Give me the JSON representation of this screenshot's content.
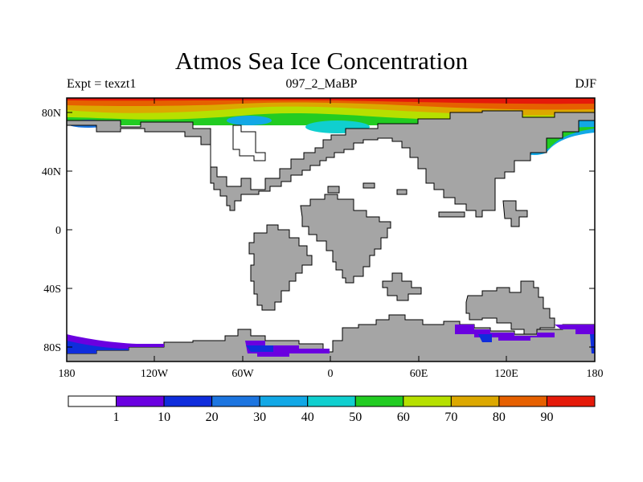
{
  "header": {
    "title": "Atmos Sea Ice Concentration",
    "left": "Expt = texzt1",
    "center": "097_2_MaBP",
    "right": "DJF"
  },
  "axes": {
    "lat_labels": [
      "80N",
      "40N",
      "0",
      "40S",
      "80S"
    ],
    "lon_labels": [
      "180",
      "120W",
      "60W",
      "0",
      "60E",
      "120E",
      "180"
    ]
  },
  "colorbar": {
    "colors": [
      "#ffffff",
      "#6a00e0",
      "#0f2ddc",
      "#1c75e0",
      "#12a8e6",
      "#10cfcf",
      "#22cc22",
      "#b6e000",
      "#dca800",
      "#e66000",
      "#e51a0a"
    ],
    "labels": [
      "1",
      "10",
      "20",
      "30",
      "40",
      "50",
      "60",
      "70",
      "80",
      "90"
    ]
  },
  "colors": {
    "land": "#a5a5a5",
    "ocean": "#ffffff"
  }
}
